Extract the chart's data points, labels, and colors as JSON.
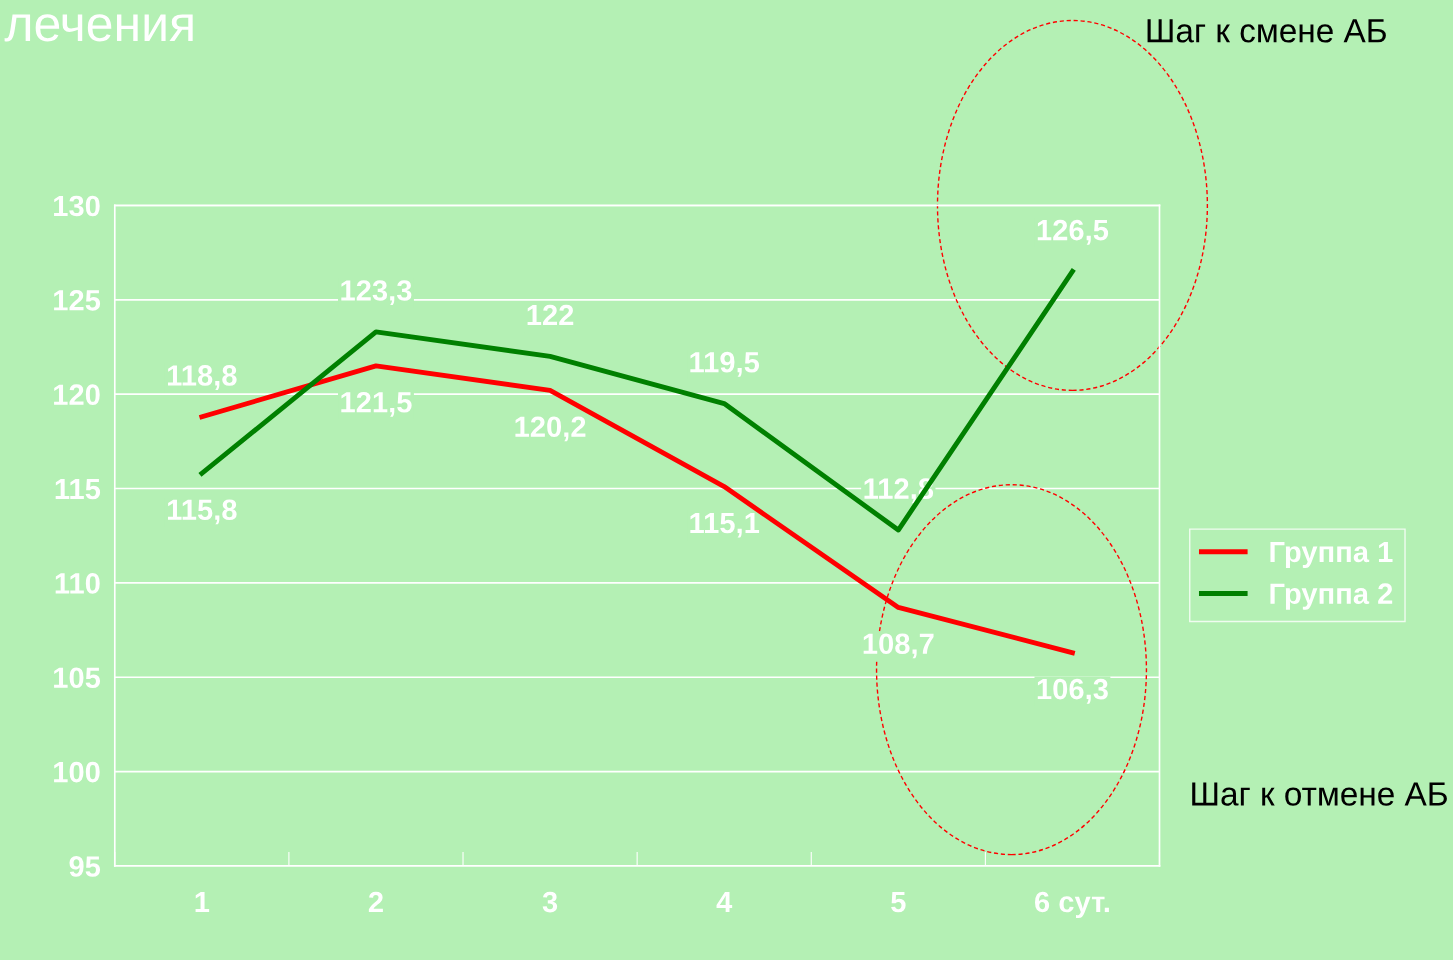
{
  "chart_data": {
    "type": "line",
    "title": "лечения",
    "categories": [
      "1",
      "2",
      "3",
      "4",
      "5",
      "6 сут."
    ],
    "series": [
      {
        "name": "Группа 1",
        "color": "#ff0000",
        "values": [
          118.8,
          121.5,
          120.2,
          115.1,
          108.7,
          106.3
        ],
        "value_labels": [
          "118,8",
          "121,5",
          "120,2",
          "115,1",
          "108,7",
          "106,3"
        ]
      },
      {
        "name": "Группа 2",
        "color": "#008000",
        "values": [
          115.8,
          123.3,
          122,
          119.5,
          112.8,
          126.5
        ],
        "value_labels": [
          "115,8",
          "123,3",
          "122",
          "119,5",
          "112,8",
          "126,5"
        ]
      }
    ],
    "ylim": [
      95,
      130
    ],
    "yticks": [
      95,
      100,
      105,
      110,
      115,
      120,
      125,
      130
    ],
    "grid": "y",
    "legend": "right",
    "marker": "none",
    "line_style": "solid",
    "annotations": [
      "Шаг к смене АБ",
      "Шаг к отмене АБ"
    ]
  }
}
